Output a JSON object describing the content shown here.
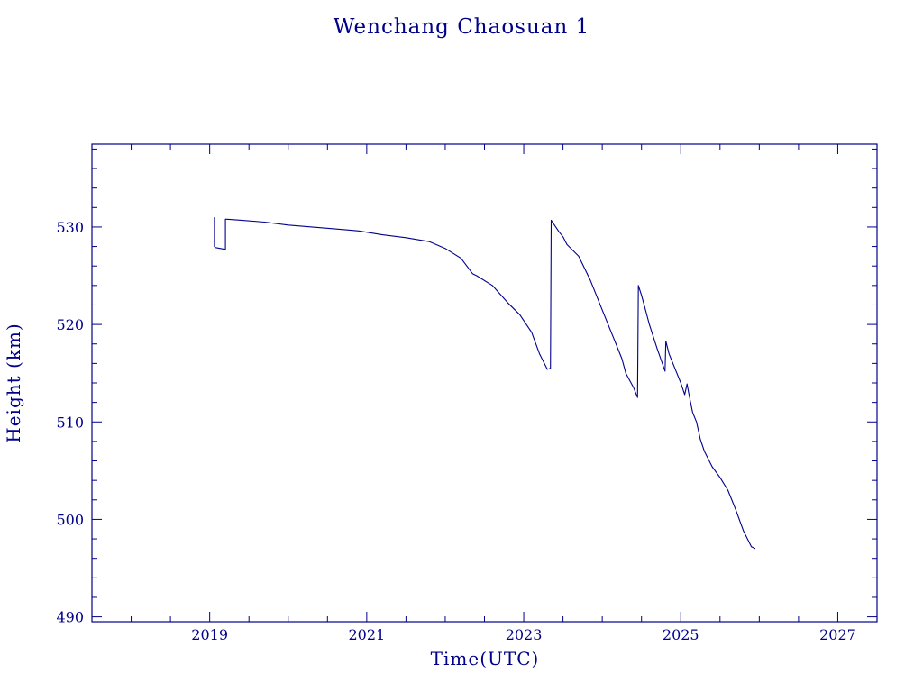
{
  "chart_data": {
    "type": "line",
    "title": "Wenchang Chaosuan 1",
    "xlabel": "Time(UTC)",
    "ylabel": "Height (km)",
    "xlim": [
      2017.5,
      2027.5
    ],
    "ylim": [
      489.5,
      538.5
    ],
    "x_ticks": [
      2019,
      2021,
      2023,
      2025,
      2027
    ],
    "x_tick_labels": [
      "2019",
      "2021",
      "2023",
      "2025",
      "2027"
    ],
    "y_ticks": [
      490,
      500,
      510,
      520,
      530
    ],
    "y_tick_labels": [
      "490",
      "500",
      "510",
      "520",
      "530"
    ],
    "grid": false,
    "color": "#00008b",
    "series": [
      {
        "x": [
          2019.06,
          2019.06,
          2019.07,
          2019.2,
          2019.2,
          2019.22,
          2019.4,
          2019.7,
          2020.0,
          2020.3,
          2020.6,
          2020.9,
          2021.2,
          2021.5,
          2021.8,
          2022.0,
          2022.2,
          2022.35,
          2022.4,
          2022.6,
          2022.8,
          2022.95,
          2023.1,
          2023.2,
          2023.3,
          2023.34,
          2023.35,
          2023.45,
          2023.5,
          2023.55,
          2023.7,
          2023.85,
          2024.0,
          2024.15,
          2024.25,
          2024.3,
          2024.4,
          2024.45,
          2024.46,
          2024.5,
          2024.55,
          2024.6,
          2024.7,
          2024.8,
          2024.81,
          2024.85,
          2024.95,
          2025.0,
          2025.05,
          2025.08,
          2025.1,
          2025.15,
          2025.2,
          2025.25,
          2025.3,
          2025.4,
          2025.5,
          2025.6,
          2025.7,
          2025.8,
          2025.9,
          2025.95
        ],
        "y": [
          531.0,
          528.0,
          527.9,
          527.7,
          530.8,
          530.8,
          530.7,
          530.5,
          530.2,
          530.0,
          529.8,
          529.6,
          529.2,
          528.9,
          528.5,
          527.8,
          526.8,
          525.2,
          525.0,
          524.0,
          522.2,
          521.0,
          519.2,
          517.0,
          515.4,
          515.5,
          530.7,
          529.5,
          529.0,
          528.2,
          527.0,
          524.5,
          521.5,
          518.5,
          516.5,
          515.0,
          513.5,
          512.5,
          524.0,
          523.0,
          521.5,
          520.0,
          517.5,
          515.2,
          518.3,
          517.0,
          515.0,
          514.0,
          512.8,
          513.9,
          513.0,
          511.0,
          510.0,
          508.2,
          507.0,
          505.4,
          504.3,
          503.0,
          501.0,
          498.8,
          497.2,
          497.0
        ]
      }
    ]
  }
}
